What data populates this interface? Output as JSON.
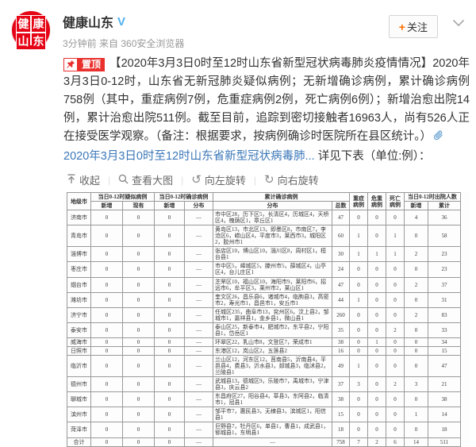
{
  "header": {
    "avatar_chars": [
      "健",
      "康",
      "山",
      "东"
    ],
    "name": "健康山东",
    "verified": "V",
    "meta": "3分钟前 来自 360安全浏览器",
    "follow_plus": "+",
    "follow_label": "关注"
  },
  "post": {
    "pin_label": "置顶",
    "text_main": "【2020年3月3日0时至12时山东省新型冠状病毒肺炎疫情情况】2020年3月3日0-12时，山东省无新冠肺炎疑似病例；无新增确诊病例，累计确诊病例758例（其中，重症病例7例，危重症病例2例，死亡病例6例）；新增治愈出院14例，累计治愈出院511例。截至目前，追踪到密切接触者16963人，尚有526人正在接受医学观察。（备注：根据要求，按病例确诊时医院所在县区统计。）",
    "attachment_link": "2020年3月3日0时至12时山东省新型冠状病毒肺...",
    "text_tail": " 详见下表（单位:例）："
  },
  "toolbar": {
    "collapse": "收起",
    "view_large": "查看大图",
    "rotate_left": "向左旋转",
    "rotate_right": "向右旋转"
  },
  "table": {
    "header": {
      "city": "地级市",
      "suspected_group": "当日0-12时疑似病例",
      "confirmed_group": "当日0-12时确诊病例",
      "cumulative_group": "累计确诊病例",
      "severe": "重症病例",
      "critical": "危重病例",
      "death": "死亡病例",
      "discharged_group": "当日0-12时出院人数",
      "sub_new1": "新增",
      "sub_existing": "现有",
      "sub_new2": "新增",
      "sub_dist1": "分布",
      "sub_dist2": "分布",
      "sub_total": "总数",
      "sub_new3": "新增",
      "sub_cum": "累计"
    },
    "rows": [
      [
        "济南市",
        "0",
        "0",
        "0",
        "—",
        "市中区28，历下区5，长清区4，历城区4，天桥区4，槐荫区1，章丘区1",
        "47",
        "0",
        "0",
        "0",
        "4",
        "36"
      ],
      [
        "青岛市",
        "0",
        "0",
        "0",
        "—",
        "黄岛区13，市北区13，即墨区8，市南区7，李沧区6，崂山区4，平度市3，莱西市3，城阳区2，胶州市1",
        "60",
        "1",
        "0",
        "1",
        "0",
        "58"
      ],
      [
        "淄博市",
        "0",
        "0",
        "0",
        "—",
        "张店区10，博山区10，淄川区8，周村区1，桓台县1",
        "30",
        "1",
        "1",
        "1",
        "2",
        "23"
      ],
      [
        "枣庄市",
        "0",
        "0",
        "0",
        "—",
        "市中区5，峄城区5，滕州市5，薛城区4，山亭区4，台儿庄区1",
        "24",
        "0",
        "0",
        "0",
        "0",
        "23"
      ],
      [
        "烟台市",
        "0",
        "0",
        "0",
        "—",
        "芝罘区10，福山区10，海阳市9，莱阳市6，招远市6，牟平区3，莱州市2，莱山区1",
        "47",
        "0",
        "0",
        "0",
        "2",
        "37"
      ],
      [
        "潍坊市",
        "0",
        "0",
        "0",
        "—",
        "奎文区26，昌乐县6，诸城市4，临朐县3，高密市2，寿光市1，昌邑市1，安丘市1",
        "44",
        "1",
        "0",
        "0",
        "0",
        "31"
      ],
      [
        "济宁市",
        "0",
        "0",
        "0",
        "—",
        "任城区235，曲阜市13，兖州区6，汶上县2，邹城市1，嘉祥县1，金乡县1，微山县1",
        "260",
        "0",
        "0",
        "0",
        "2",
        "83"
      ],
      [
        "泰安市",
        "0",
        "0",
        "0",
        "—",
        "泰山区25，新泰市4，肥城市2，东平县2，宁阳县1，岱岳区1",
        "35",
        "0",
        "0",
        "2",
        "0",
        "33"
      ],
      [
        "威海市",
        "0",
        "0",
        "0",
        "—",
        "环翠区22，乳山市8，文登区7，荣成市1",
        "38",
        "0",
        "1",
        "0",
        "0",
        "34"
      ],
      [
        "日照市",
        "0",
        "0",
        "0",
        "—",
        "东港区12，岚山区2，五莲县2",
        "16",
        "0",
        "0",
        "0",
        "0",
        "15"
      ],
      [
        "临沂市",
        "0",
        "0",
        "0",
        "—",
        "兰山区12，河东区12，莒南县5，沂南县4，平邑县4，费县3，沂水县3，郯城县3，临沭县2，兰陵县1",
        "49",
        "1",
        "0",
        "0",
        "0",
        "47"
      ],
      [
        "德州市",
        "0",
        "0",
        "0",
        "—",
        "武城县13，德城区9，乐陵市7，禹城市3，宁津县3，庆云县2",
        "37",
        "3",
        "0",
        "2",
        "3",
        "21"
      ],
      [
        "聊城市",
        "0",
        "0",
        "0",
        "—",
        "东昌府区27，阳谷县4，莘县3，东阿县2，临清市1，冠县1",
        "38",
        "0",
        "0",
        "0",
        "0",
        "38"
      ],
      [
        "滨州市",
        "0",
        "0",
        "0",
        "—",
        "邹平市7，惠民县3，无棣县3，滨城区1，阳信县1",
        "15",
        "0",
        "0",
        "0",
        "1",
        "14"
      ],
      [
        "菏泽市",
        "0",
        "0",
        "0",
        "—",
        "巨野县7，牡丹区6，单县1，曹县1，成武县1，郓城县1，东明县1",
        "18",
        "0",
        "0",
        "0",
        "0",
        "18"
      ],
      [
        "合计",
        "0",
        "0",
        "0",
        "—",
        "—",
        "758",
        "7",
        "2",
        "6",
        "14",
        "511"
      ]
    ]
  },
  "colors": {
    "badge_red": "#e9302d",
    "avatar_red": "#e60516",
    "link_blue": "#3b77b8",
    "verified_blue": "#4fb0ee",
    "follow_plus_orange": "#ff6f00"
  }
}
